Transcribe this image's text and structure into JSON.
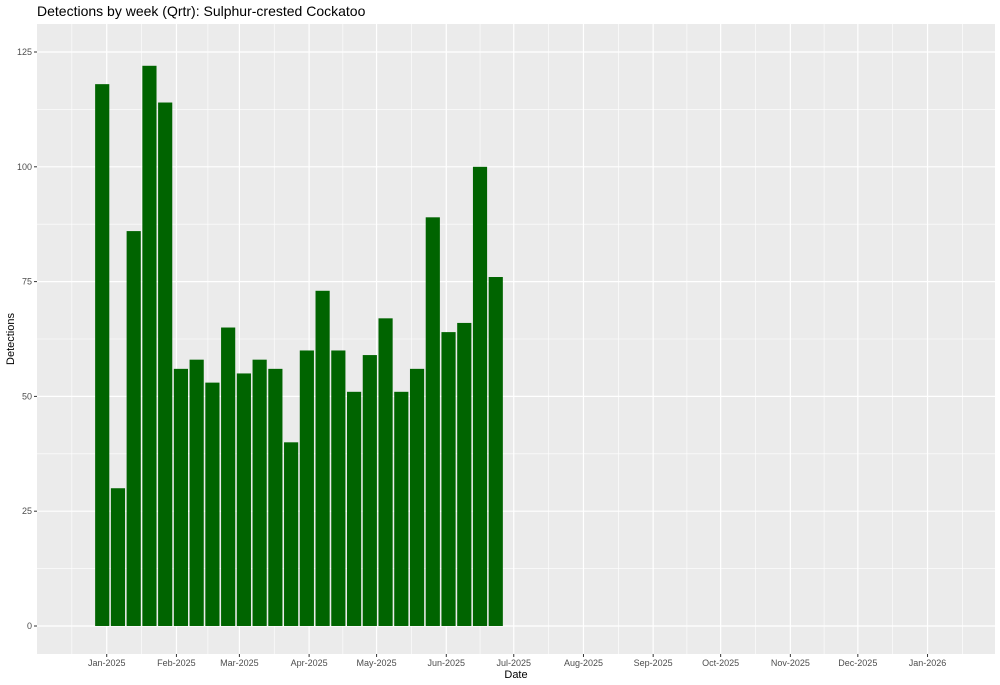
{
  "chart_data": {
    "type": "bar",
    "title": "Detections by week (Qrtr): Sulphur-crested Cockatoo",
    "xlabel": "Date",
    "ylabel": "Detections",
    "ylim": [
      0,
      125
    ],
    "xlim": [
      "2024-12-01",
      "2026-01-31"
    ],
    "y_ticks": [
      0,
      25,
      50,
      75,
      100,
      125
    ],
    "x_ticks": [
      {
        "date": "2025-01-01",
        "label": "Jan-2025"
      },
      {
        "date": "2025-02-01",
        "label": "Feb-2025"
      },
      {
        "date": "2025-03-01",
        "label": "Mar-2025"
      },
      {
        "date": "2025-04-01",
        "label": "Apr-2025"
      },
      {
        "date": "2025-05-01",
        "label": "May-2025"
      },
      {
        "date": "2025-06-01",
        "label": "Jun-2025"
      },
      {
        "date": "2025-07-01",
        "label": "Jul-2025"
      },
      {
        "date": "2025-08-01",
        "label": "Aug-2025"
      },
      {
        "date": "2025-09-01",
        "label": "Sep-2025"
      },
      {
        "date": "2025-10-01",
        "label": "Oct-2025"
      },
      {
        "date": "2025-11-01",
        "label": "Nov-2025"
      },
      {
        "date": "2025-12-01",
        "label": "Dec-2025"
      },
      {
        "date": "2026-01-01",
        "label": "Jan-2026"
      }
    ],
    "x": [
      "2024-12-30",
      "2025-01-06",
      "2025-01-13",
      "2025-01-20",
      "2025-01-27",
      "2025-02-03",
      "2025-02-10",
      "2025-02-17",
      "2025-02-24",
      "2025-03-03",
      "2025-03-10",
      "2025-03-17",
      "2025-03-24",
      "2025-03-31",
      "2025-04-07",
      "2025-04-14",
      "2025-04-21",
      "2025-04-28",
      "2025-05-05",
      "2025-05-12",
      "2025-05-19",
      "2025-05-26",
      "2025-06-02",
      "2025-06-09",
      "2025-06-16",
      "2025-06-23"
    ],
    "values": [
      118,
      30,
      86,
      122,
      114,
      56,
      58,
      53,
      65,
      55,
      58,
      56,
      40,
      60,
      73,
      60,
      51,
      59,
      67,
      51,
      56,
      89,
      64,
      66,
      100,
      76
    ],
    "bar_color": "#006400",
    "panel_background": "#ebebeb",
    "grid": true,
    "legend": "none"
  }
}
